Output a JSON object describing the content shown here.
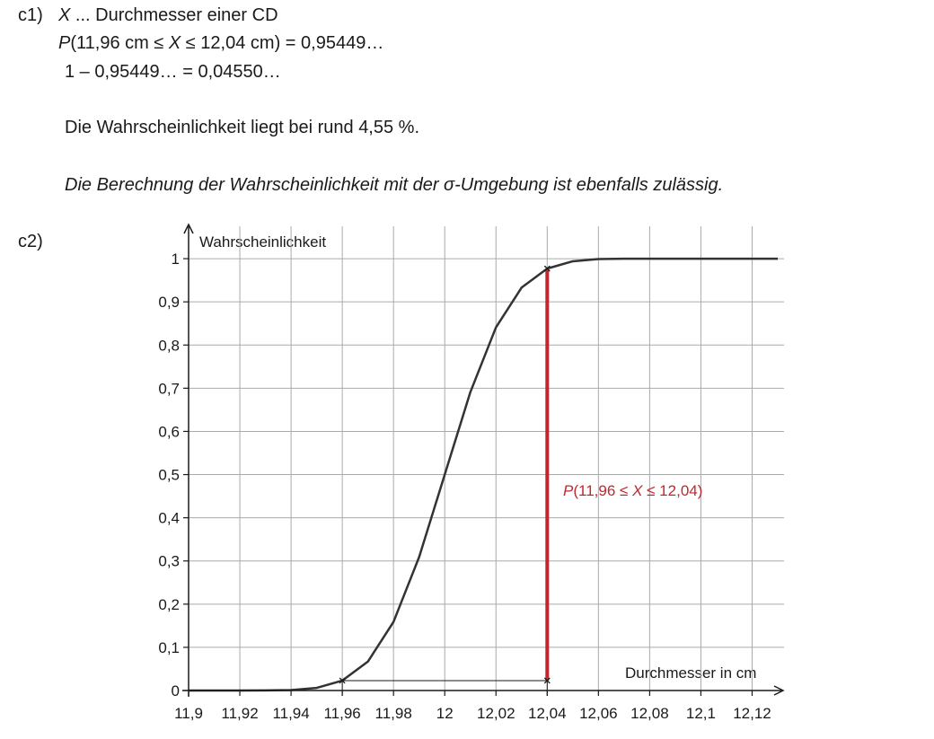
{
  "document": {
    "c1": {
      "label": "c1)",
      "line1": [
        "X",
        " ... Durchmesser einer CD"
      ],
      "line2": [
        "P",
        "(11,96 cm ≤ ",
        "X",
        " ≤ 12,04 cm) = 0,95449…"
      ],
      "line3": "1 – 0,95449… = 0,04550…",
      "result": "Die Wahrscheinlichkeit liegt bei rund 4,55 %.",
      "note": "Die Berechnung der Wahrscheinlichkeit mit der σ-Umgebung ist ebenfalls zulässig."
    },
    "c2": {
      "label": "c2)"
    }
  },
  "chart_data": {
    "type": "line",
    "y_label": "Wahrscheinlichkeit",
    "x_label": "Durchmesser in cm",
    "x": [
      11.9,
      11.91,
      11.92,
      11.93,
      11.94,
      11.95,
      11.96,
      11.97,
      11.98,
      11.99,
      12.0,
      12.01,
      12.02,
      12.03,
      12.04,
      12.05,
      12.06,
      12.07,
      12.08,
      12.09,
      12.1,
      12.11,
      12.12,
      12.13
    ],
    "values": [
      0,
      0,
      0,
      0.0002,
      0.001,
      0.006,
      0.023,
      0.067,
      0.159,
      0.309,
      0.5,
      0.691,
      0.841,
      0.933,
      0.977,
      0.994,
      0.999,
      1,
      1,
      1,
      1,
      1,
      1,
      1
    ],
    "color": "#333333",
    "xlim": [
      11.9,
      12.13
    ],
    "ylim": [
      0,
      1.075
    ],
    "xticks": [
      {
        "value": 11.9,
        "label": "11,9"
      },
      {
        "value": 11.92,
        "label": "11,92"
      },
      {
        "value": 11.94,
        "label": "11,94"
      },
      {
        "value": 11.96,
        "label": "11,96"
      },
      {
        "value": 11.98,
        "label": "11,98"
      },
      12,
      {
        "value": 12.02,
        "label": "12,02"
      },
      {
        "value": 12.04,
        "label": "12,04"
      },
      {
        "value": 12.06,
        "label": "12,06"
      },
      {
        "value": 12.08,
        "label": "12,08"
      },
      {
        "value": 12.1,
        "label": "12,1"
      },
      {
        "value": 12.12,
        "label": "12,12"
      }
    ],
    "yticks": [
      0,
      {
        "value": 0.1,
        "label": "0,1"
      },
      {
        "value": 0.2,
        "label": "0,2"
      },
      {
        "value": 0.3,
        "label": "0,3"
      },
      {
        "value": 0.4,
        "label": "0,4"
      },
      {
        "value": 0.5,
        "label": "0,5"
      },
      {
        "value": 0.6,
        "label": "0,6"
      },
      {
        "value": 0.7,
        "label": "0,7"
      },
      {
        "value": 0.8,
        "label": "0,8"
      },
      {
        "value": 0.9,
        "label": "0,9"
      },
      1
    ],
    "grid": true,
    "interval": {
      "x": [
        11.96,
        12.04
      ],
      "lower": 0.023,
      "upper": 0.977,
      "color": "#c1272d",
      "label": [
        "P",
        "(11,96 ≤ ",
        "X",
        " ≤ 12,04)"
      ]
    }
  }
}
